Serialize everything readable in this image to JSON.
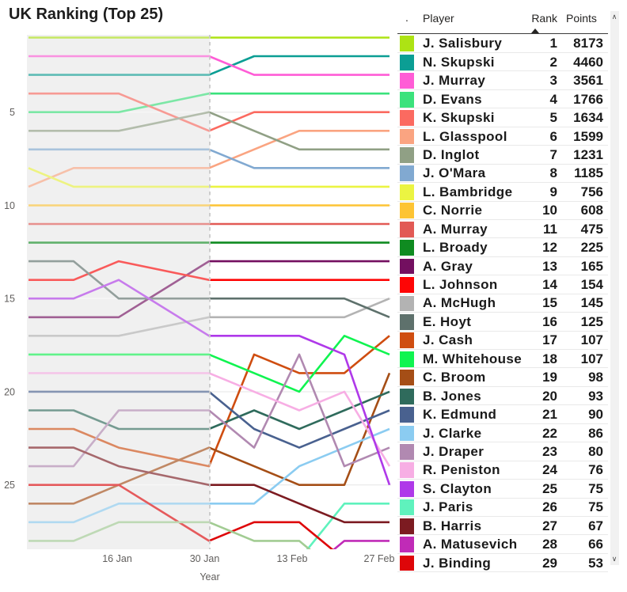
{
  "title": "UK Ranking (Top 25)",
  "chart_data": {
    "type": "line",
    "title": "UK Ranking (Top 25)",
    "xlabel": "Year",
    "ylabel": "",
    "x_tick_labels": [
      "16 Jan",
      "30 Jan",
      "13 Feb",
      "27 Feb"
    ],
    "y_tick_labels": [
      "5",
      "10",
      "15",
      "20",
      "25"
    ],
    "y_axis": "rank (1 at top, inverted)",
    "ylim": [
      1,
      28.5
    ],
    "grid": "horizontal",
    "legend_position": "right table",
    "dates": [
      "2 Jan",
      "9 Jan",
      "16 Jan",
      "30 Jan",
      "6 Feb",
      "13 Feb",
      "20 Feb",
      "27 Feb"
    ],
    "day_offsets": [
      0,
      7,
      14,
      28,
      35,
      42,
      49,
      56
    ],
    "shaded_region": {
      "from": "2 Jan",
      "to": "30 Jan",
      "style": "light gray band with dashed right edge"
    },
    "series": [
      {
        "name": "J. Salisbury",
        "color": "#ADE314",
        "ranks": [
          1,
          1,
          1,
          1,
          1,
          1,
          1,
          1
        ]
      },
      {
        "name": "N. Skupski",
        "color": "#0B9E94",
        "ranks": [
          3,
          3,
          3,
          3,
          2,
          2,
          2,
          2
        ]
      },
      {
        "name": "J. Murray",
        "color": "#FF5CD6",
        "ranks": [
          2,
          2,
          2,
          2,
          3,
          3,
          3,
          3
        ]
      },
      {
        "name": "D. Evans",
        "color": "#3BE27C",
        "ranks": [
          5,
          5,
          5,
          4,
          4,
          4,
          4,
          4
        ]
      },
      {
        "name": "K. Skupski",
        "color": "#FB6A60",
        "ranks": [
          4,
          4,
          4,
          6,
          5,
          5,
          5,
          5
        ]
      },
      {
        "name": "L. Glasspool",
        "color": "#FAA481",
        "ranks": [
          9,
          8,
          8,
          8,
          7,
          6,
          6,
          6
        ]
      },
      {
        "name": "D. Inglot",
        "color": "#90A085",
        "ranks": [
          6,
          6,
          6,
          5,
          6,
          7,
          7,
          7
        ]
      },
      {
        "name": "J. O'Mara",
        "color": "#81A9D1",
        "ranks": [
          7,
          7,
          7,
          7,
          8,
          8,
          8,
          8
        ]
      },
      {
        "name": "L. Bambridge",
        "color": "#EBF442",
        "ranks": [
          8,
          9,
          9,
          9,
          9,
          9,
          9,
          9
        ]
      },
      {
        "name": "C. Norrie",
        "color": "#FDC434",
        "ranks": [
          10,
          10,
          10,
          10,
          10,
          10,
          10,
          10
        ]
      },
      {
        "name": "A. Murray",
        "color": "#E25A55",
        "ranks": [
          11,
          11,
          11,
          11,
          11,
          11,
          11,
          11
        ]
      },
      {
        "name": "L. Broady",
        "color": "#0F8B20",
        "ranks": [
          12,
          12,
          12,
          12,
          12,
          12,
          12,
          12
        ]
      },
      {
        "name": "A. Gray",
        "color": "#730F60",
        "ranks": [
          16,
          16,
          16,
          13,
          13,
          13,
          13,
          13
        ]
      },
      {
        "name": "L. Johnson",
        "color": "#FE0505",
        "ranks": [
          14,
          14,
          13,
          14,
          14,
          14,
          14,
          14
        ]
      },
      {
        "name": "A. McHugh",
        "color": "#B3B3B3",
        "ranks": [
          17,
          17,
          17,
          16,
          16,
          16,
          16,
          15
        ]
      },
      {
        "name": "E. Hoyt",
        "color": "#5E716C",
        "ranks": [
          13,
          13,
          15,
          15,
          15,
          15,
          15,
          16
        ]
      },
      {
        "name": "J. Cash",
        "color": "#CF4D10",
        "ranks": [
          22,
          22,
          23,
          24,
          18,
          19,
          19,
          17
        ]
      },
      {
        "name": "M. Whitehouse",
        "color": "#10F450",
        "ranks": [
          18,
          18,
          18,
          18,
          19,
          20,
          17,
          18
        ]
      },
      {
        "name": "C. Broom",
        "color": "#A54E16",
        "ranks": [
          26,
          26,
          25,
          23,
          24,
          25,
          25,
          19
        ]
      },
      {
        "name": "B. Jones",
        "color": "#2F6B5C",
        "ranks": [
          21,
          21,
          22,
          22,
          21,
          22,
          21,
          20
        ]
      },
      {
        "name": "K. Edmund",
        "color": "#49618F",
        "ranks": [
          20,
          20,
          20,
          20,
          22,
          23,
          22,
          21
        ]
      },
      {
        "name": "J. Clarke",
        "color": "#8BCCF1",
        "ranks": [
          27,
          27,
          26,
          26,
          26,
          24,
          23,
          22
        ]
      },
      {
        "name": "J. Draper",
        "color": "#B189B1",
        "ranks": [
          24,
          24,
          21,
          21,
          23,
          18,
          24,
          23
        ]
      },
      {
        "name": "R. Peniston",
        "color": "#F7AEE4",
        "ranks": [
          19,
          19,
          19,
          19,
          20,
          21,
          20,
          24
        ]
      },
      {
        "name": "S. Clayton",
        "color": "#AF39E9",
        "ranks": [
          15,
          15,
          14,
          17,
          17,
          17,
          18,
          25
        ]
      },
      {
        "name": "J. Paris",
        "color": "#5FF2BD",
        "ranks": [
          null,
          null,
          null,
          null,
          null,
          29,
          26,
          26
        ]
      },
      {
        "name": "B. Harris",
        "color": "#7C1B21",
        "ranks": [
          23,
          23,
          24,
          25,
          25,
          26,
          27,
          27
        ]
      },
      {
        "name": "A. Matusevich",
        "color": "#C02BB7",
        "ranks": [
          null,
          null,
          null,
          null,
          null,
          30,
          28,
          28
        ]
      },
      {
        "name": "J. Binding",
        "color": "#DE0609",
        "ranks": [
          25,
          25,
          25,
          28,
          27,
          27,
          29,
          29
        ]
      },
      {
        "name": "",
        "color": "#A2CC93",
        "ranks": [
          28,
          28,
          27,
          27,
          28,
          28,
          30,
          null
        ]
      }
    ]
  },
  "table": {
    "columns": {
      "swatch": ".",
      "player": "Player",
      "rank": "Rank",
      "points": "Points"
    },
    "sort": {
      "column": "Rank",
      "direction": "ascending"
    },
    "rows": [
      {
        "player": "J. Salisbury",
        "rank": "1",
        "points": "8173",
        "color": "#ADE314"
      },
      {
        "player": "N. Skupski",
        "rank": "2",
        "points": "4460",
        "color": "#0B9E94"
      },
      {
        "player": "J. Murray",
        "rank": "3",
        "points": "3561",
        "color": "#FF5CD6"
      },
      {
        "player": "D. Evans",
        "rank": "4",
        "points": "1766",
        "color": "#3BE27C"
      },
      {
        "player": "K. Skupski",
        "rank": "5",
        "points": "1634",
        "color": "#FB6A60"
      },
      {
        "player": "L. Glasspool",
        "rank": "6",
        "points": "1599",
        "color": "#FAA481"
      },
      {
        "player": "D. Inglot",
        "rank": "7",
        "points": "1231",
        "color": "#90A085"
      },
      {
        "player": "J. O'Mara",
        "rank": "8",
        "points": "1185",
        "color": "#81A9D1"
      },
      {
        "player": "L. Bambridge",
        "rank": "9",
        "points": "756",
        "color": "#EBF442"
      },
      {
        "player": "C. Norrie",
        "rank": "10",
        "points": "608",
        "color": "#FDC434"
      },
      {
        "player": "A. Murray",
        "rank": "11",
        "points": "475",
        "color": "#E25A55"
      },
      {
        "player": "L. Broady",
        "rank": "12",
        "points": "225",
        "color": "#0F8B20"
      },
      {
        "player": "A. Gray",
        "rank": "13",
        "points": "165",
        "color": "#730F60"
      },
      {
        "player": "L. Johnson",
        "rank": "14",
        "points": "154",
        "color": "#FE0505"
      },
      {
        "player": "A. McHugh",
        "rank": "15",
        "points": "145",
        "color": "#B3B3B3"
      },
      {
        "player": "E. Hoyt",
        "rank": "16",
        "points": "125",
        "color": "#5E716C"
      },
      {
        "player": "J. Cash",
        "rank": "17",
        "points": "107",
        "color": "#CF4D10"
      },
      {
        "player": "M. Whitehouse",
        "rank": "18",
        "points": "107",
        "color": "#10F450"
      },
      {
        "player": "C. Broom",
        "rank": "19",
        "points": "98",
        "color": "#A54E16"
      },
      {
        "player": "B. Jones",
        "rank": "20",
        "points": "93",
        "color": "#2F6B5C"
      },
      {
        "player": "K. Edmund",
        "rank": "21",
        "points": "90",
        "color": "#49618F"
      },
      {
        "player": "J. Clarke",
        "rank": "22",
        "points": "86",
        "color": "#8BCCF1"
      },
      {
        "player": "J. Draper",
        "rank": "23",
        "points": "80",
        "color": "#B189B1"
      },
      {
        "player": "R. Peniston",
        "rank": "24",
        "points": "76",
        "color": "#F7AEE4"
      },
      {
        "player": "S. Clayton",
        "rank": "25",
        "points": "75",
        "color": "#AF39E9"
      },
      {
        "player": "J. Paris",
        "rank": "26",
        "points": "75",
        "color": "#5FF2BD"
      },
      {
        "player": "B. Harris",
        "rank": "27",
        "points": "67",
        "color": "#7C1B21"
      },
      {
        "player": "A. Matusevich",
        "rank": "28",
        "points": "66",
        "color": "#C02BB7"
      },
      {
        "player": "J. Binding",
        "rank": "29",
        "points": "53",
        "color": "#DE0609"
      }
    ]
  },
  "scrollbar": {
    "up_icon": "∧",
    "down_icon": "∨"
  }
}
